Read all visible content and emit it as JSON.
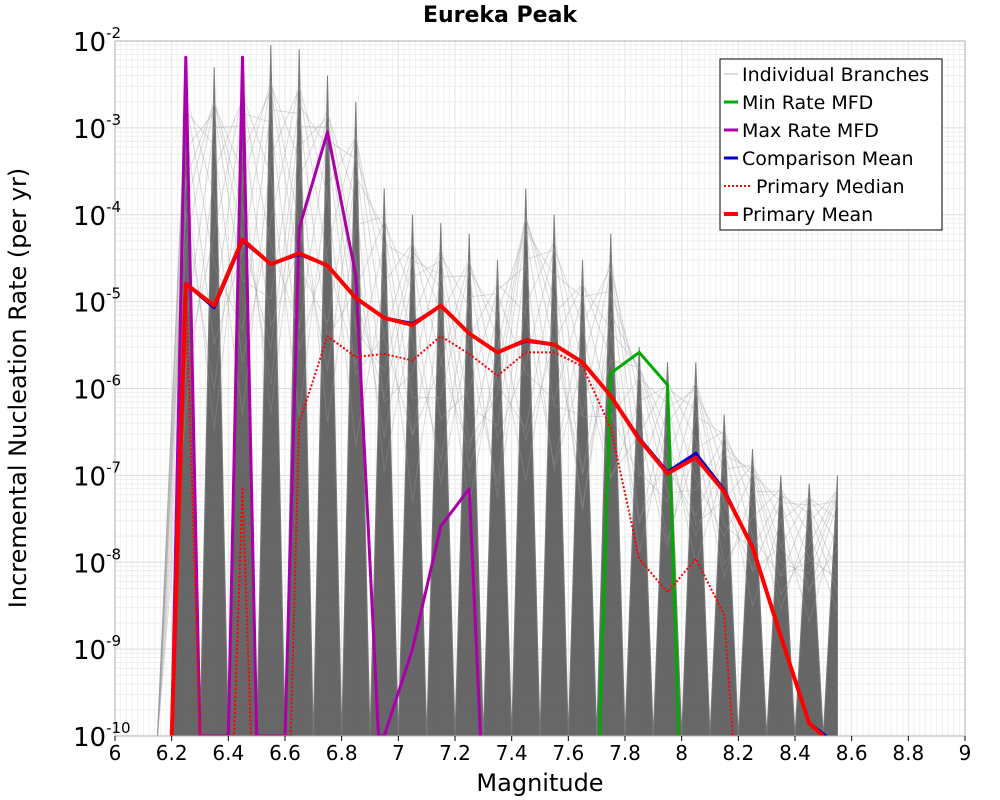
{
  "chart_data": {
    "type": "line",
    "title": "Eureka Peak",
    "xlabel": "Magnitude",
    "ylabel": "Incremental Nucleation Rate (per yr)",
    "xlim": [
      6,
      9
    ],
    "ylim": [
      1e-10,
      0.01
    ],
    "yscale": "log",
    "grid": true,
    "legend_position": "top-right",
    "x_ticks": [
      "6",
      "6.2",
      "6.4",
      "6.6",
      "6.8",
      "7",
      "7.2",
      "7.4",
      "7.6",
      "7.8",
      "8",
      "8.2",
      "8.4",
      "8.6",
      "8.8",
      "9"
    ],
    "y_ticks": [
      {
        "base": "10",
        "exp": "-10"
      },
      {
        "base": "10",
        "exp": "-9"
      },
      {
        "base": "10",
        "exp": "-8"
      },
      {
        "base": "10",
        "exp": "-7"
      },
      {
        "base": "10",
        "exp": "-6"
      },
      {
        "base": "10",
        "exp": "-5"
      },
      {
        "base": "10",
        "exp": "-4"
      },
      {
        "base": "10",
        "exp": "-3"
      },
      {
        "base": "10",
        "exp": "-2"
      }
    ],
    "series": [
      {
        "name": "Individual Branches",
        "color": "#555555",
        "style": "thin-band",
        "x": [
          6.15,
          6.25,
          6.35,
          6.45,
          6.55,
          6.65,
          6.75,
          6.85,
          6.95,
          7.05,
          7.15,
          7.25,
          7.35,
          7.45,
          7.55,
          7.65,
          7.75,
          7.85,
          7.95,
          8.05,
          8.15,
          8.25,
          8.35,
          8.45,
          8.55
        ],
        "upper": [
          1e-10,
          0.006,
          0.005,
          0.006,
          0.009,
          0.008,
          0.004,
          0.002,
          0.0002,
          0.0001,
          8e-05,
          6e-05,
          3e-05,
          0.0002,
          0.0001,
          3e-05,
          6e-05,
          3e-06,
          2e-06,
          2e-06,
          5e-07,
          2e-07,
          1e-07,
          8e-08,
          1e-07
        ],
        "lower": [
          1e-10,
          1e-10,
          1e-10,
          1e-10,
          1e-10,
          1e-10,
          1e-10,
          1e-10,
          1e-10,
          1e-10,
          1e-10,
          1e-10,
          1e-10,
          1e-10,
          1e-10,
          1e-10,
          1e-10,
          1e-10,
          1e-10,
          1e-10,
          1e-10,
          1e-10,
          1e-10,
          1e-10,
          1e-10
        ]
      },
      {
        "name": "Min Rate MFD",
        "color": "#00aa00",
        "style": "solid",
        "x": [
          7.71,
          7.75,
          7.85,
          7.95,
          7.99
        ],
        "y": [
          1e-10,
          1.5e-06,
          2.6e-06,
          1.1e-06,
          1e-10
        ]
      },
      {
        "name": "Max Rate MFD",
        "color": "#aa00aa",
        "style": "solid",
        "x": [
          6.2,
          6.25,
          6.3,
          6.4,
          6.45,
          6.5,
          6.6,
          6.65,
          6.75,
          6.85,
          6.93,
          6.95,
          7.05,
          7.15,
          7.25,
          7.29
        ],
        "y": [
          1e-10,
          0.0065,
          1e-10,
          1e-10,
          0.0065,
          1e-10,
          1e-10,
          7e-05,
          0.0009,
          2e-05,
          1e-10,
          1e-10,
          1e-09,
          2.6e-08,
          7e-08,
          1e-10
        ]
      },
      {
        "name": "Comparison Mean",
        "color": "#0000cc",
        "style": "solid",
        "x": [
          6.2,
          6.25,
          6.35,
          6.45,
          6.55,
          6.65,
          6.75,
          6.85,
          6.95,
          7.05,
          7.15,
          7.25,
          7.35,
          7.45,
          7.55,
          7.65,
          7.75,
          7.85,
          7.95,
          8.05,
          8.15,
          8.25,
          8.35,
          8.45,
          8.51
        ],
        "y": [
          1e-10,
          1.6e-05,
          8.5e-06,
          5e-05,
          2.7e-05,
          3.5e-05,
          2.6e-05,
          1.1e-05,
          6.5e-06,
          5.6e-06,
          9e-06,
          4.3e-06,
          2.6e-06,
          3.5e-06,
          3.2e-06,
          2e-06,
          8.2e-07,
          2.7e-07,
          1.1e-07,
          1.8e-07,
          6.8e-08,
          1.5e-08,
          1.4e-09,
          1.4e-10,
          1e-10
        ]
      },
      {
        "name": "Primary Median",
        "color": "#ff0000",
        "style": "dotted",
        "x": [
          6.2,
          6.25,
          6.3,
          6.42,
          6.45,
          6.48,
          6.62,
          6.65,
          6.75,
          6.85,
          6.95,
          7.05,
          7.15,
          7.25,
          7.35,
          7.45,
          7.55,
          7.65,
          7.75,
          7.85,
          7.95,
          8.05,
          8.15,
          8.18
        ],
        "y": [
          1e-10,
          1.5e-05,
          1e-10,
          1e-10,
          7e-08,
          1e-10,
          1e-10,
          4e-07,
          4e-06,
          2.3e-06,
          2.5e-06,
          2.1e-06,
          4e-06,
          2.5e-06,
          1.4e-06,
          2.6e-06,
          2.6e-06,
          1.8e-06,
          3.5e-07,
          1.1e-08,
          4.5e-09,
          1.1e-08,
          2.5e-09,
          1e-10
        ]
      },
      {
        "name": "Primary Mean",
        "color": "#ff0000",
        "style": "thick",
        "x": [
          6.2,
          6.25,
          6.35,
          6.45,
          6.55,
          6.65,
          6.75,
          6.85,
          6.95,
          7.05,
          7.15,
          7.25,
          7.35,
          7.45,
          7.55,
          7.65,
          7.75,
          7.85,
          7.95,
          8.05,
          8.15,
          8.25,
          8.35,
          8.45,
          8.5
        ],
        "y": [
          1e-10,
          1.6e-05,
          9e-06,
          5.2e-05,
          2.7e-05,
          3.6e-05,
          2.6e-05,
          1.1e-05,
          6.5e-06,
          5.4e-06,
          9e-06,
          4.3e-06,
          2.6e-06,
          3.6e-06,
          3.2e-06,
          2e-06,
          8.2e-07,
          2.6e-07,
          1.05e-07,
          1.6e-07,
          6.5e-08,
          1.5e-08,
          1.4e-09,
          1.4e-10,
          1e-10
        ]
      }
    ]
  }
}
